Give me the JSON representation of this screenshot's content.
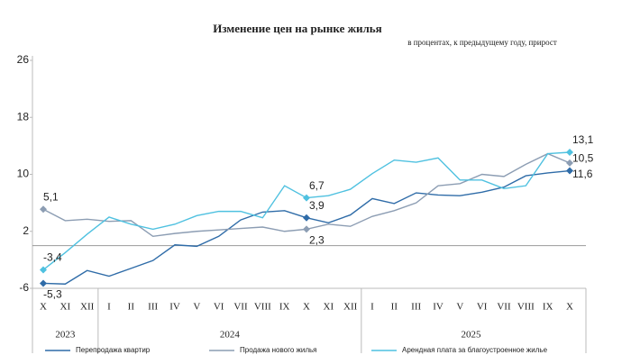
{
  "chart_data": {
    "type": "line",
    "title": "Изменение цен на рынке жилья",
    "subtitle": "в процентах, к предыдущему году, прирост",
    "categories": [
      "X",
      "XI",
      "XII",
      "I",
      "II",
      "III",
      "IV",
      "V",
      "VI",
      "VII",
      "VIII",
      "IX",
      "X",
      "XI",
      "XII",
      "I",
      "II",
      "III",
      "IV",
      "V",
      "VI",
      "VII",
      "VIII",
      "IX",
      "X"
    ],
    "years": [
      "2023",
      "2023",
      "2023",
      "2024",
      "2024",
      "2024",
      "2024",
      "2024",
      "2024",
      "2024",
      "2024",
      "2024",
      "2024",
      "2024",
      "2024",
      "2025",
      "2025",
      "2025",
      "2025",
      "2025",
      "2025",
      "2025",
      "2025",
      "2025",
      "2025"
    ],
    "ylim": [
      -6,
      26
    ],
    "yticks": [
      -6,
      2,
      10,
      18,
      26
    ],
    "series": [
      {
        "name": "Перепродажа квартир",
        "color": "#2f6ca8",
        "values": [
          -5.3,
          -5.4,
          -3.5,
          -4.3,
          -3.2,
          -2.1,
          0.1,
          -0.1,
          1.3,
          3.6,
          4.7,
          4.9,
          3.9,
          3.2,
          4.3,
          6.6,
          5.9,
          7.4,
          7.1,
          7.0,
          7.5,
          8.2,
          9.8,
          10.2,
          10.5
        ],
        "value_labels": [
          "-5,3",
          null,
          null,
          null,
          null,
          null,
          null,
          null,
          null,
          null,
          null,
          null,
          "3,9",
          null,
          null,
          null,
          null,
          null,
          null,
          null,
          null,
          null,
          null,
          null,
          "10,5"
        ]
      },
      {
        "name": "Продажа нового жилья",
        "color": "#8c9db3",
        "values": [
          5.1,
          3.5,
          3.7,
          3.4,
          3.5,
          1.3,
          1.7,
          2.0,
          2.2,
          2.4,
          2.6,
          2.0,
          2.3,
          3.0,
          2.7,
          4.1,
          4.9,
          6.0,
          8.4,
          8.7,
          10.0,
          9.7,
          11.4,
          12.9,
          11.6
        ],
        "value_labels": [
          "5,1",
          null,
          null,
          null,
          null,
          null,
          null,
          null,
          null,
          null,
          null,
          null,
          "2,3",
          null,
          null,
          null,
          null,
          null,
          null,
          null,
          null,
          null,
          null,
          null,
          "11,6"
        ]
      },
      {
        "name": "Арендная плата за благоустроенное жилье",
        "color": "#4fc1e0",
        "values": [
          -3.4,
          -1.0,
          1.6,
          4.0,
          3.0,
          2.3,
          3.0,
          4.2,
          4.8,
          4.8,
          3.9,
          8.4,
          6.7,
          7.0,
          7.9,
          10.1,
          12.0,
          11.7,
          12.3,
          9.2,
          9.2,
          8.0,
          8.4,
          12.9,
          13.1
        ],
        "value_labels": [
          "-3,4",
          null,
          null,
          null,
          null,
          null,
          null,
          null,
          null,
          null,
          null,
          null,
          "6,7",
          null,
          null,
          null,
          null,
          null,
          null,
          null,
          null,
          null,
          null,
          null,
          "13,1"
        ]
      }
    ]
  }
}
